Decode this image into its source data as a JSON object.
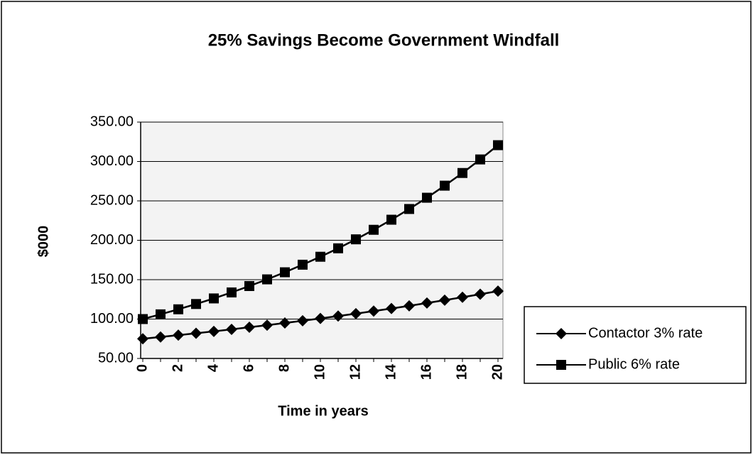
{
  "chart_data": {
    "type": "line",
    "title": "25% Savings Become Government Windfall",
    "x_label": "Time in years",
    "y_label": "$000",
    "categories": [
      0,
      null,
      2,
      null,
      4,
      null,
      6,
      null,
      8,
      null,
      10,
      null,
      12,
      null,
      14,
      null,
      16,
      null,
      18,
      null,
      20
    ],
    "series": [
      {
        "name": "Contactor 3% rate",
        "color": "#000000",
        "marker": "diamond",
        "values": [
          75,
          77.3,
          79.6,
          82.0,
          84.4,
          86.9,
          89.6,
          92.2,
          95.0,
          97.9,
          100.8,
          103.8,
          106.9,
          110.1,
          113.4,
          116.8,
          120.4,
          124.0,
          127.7,
          131.5,
          135.5
        ]
      },
      {
        "name": "Public 6% rate",
        "color": "#000000",
        "marker": "square",
        "values": [
          100,
          106.0,
          112.4,
          119.1,
          126.2,
          133.8,
          141.9,
          150.4,
          159.4,
          169.0,
          179.1,
          189.8,
          201.2,
          213.3,
          226.1,
          239.7,
          254.0,
          269.3,
          285.4,
          302.6,
          320.7
        ]
      }
    ],
    "ylim": [
      50,
      350
    ],
    "yticks": [
      {
        "value": 50,
        "label": "50.00"
      },
      {
        "value": 100,
        "label": "100.00"
      },
      {
        "value": 150,
        "label": "150.00"
      },
      {
        "value": 200,
        "label": "200.00"
      },
      {
        "value": 250,
        "label": "250.00"
      },
      {
        "value": 300,
        "label": "300.00"
      },
      {
        "value": 350,
        "label": "350.00"
      }
    ],
    "grid": true,
    "legend": "right"
  }
}
